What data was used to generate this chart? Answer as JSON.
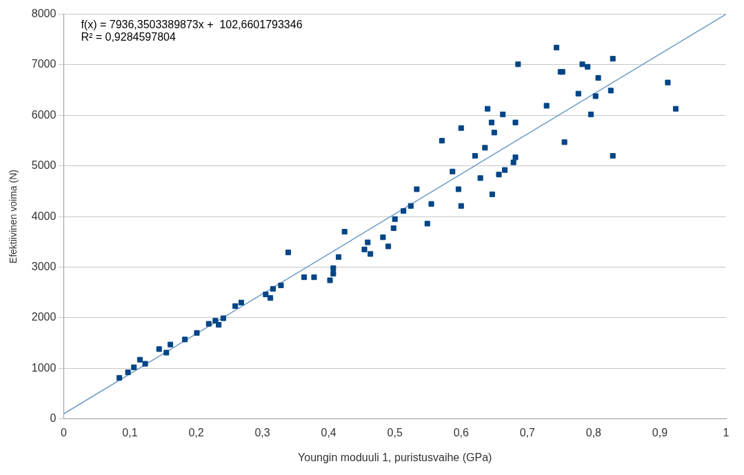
{
  "chart_data": {
    "type": "scatter",
    "xlabel": "Youngin moduuli 1, puristusvaihe (GPa)",
    "ylabel": "Efektiivinen voima (N)",
    "annotations": [
      "f(x) = 7936,3503389873x +  102,6601793346",
      "R² = 0,9284597804"
    ],
    "xlim": [
      0,
      1
    ],
    "ylim": [
      0,
      8000
    ],
    "xticks": [
      0,
      {
        "value": 0.1,
        "label": "0,1"
      },
      {
        "value": 0.2,
        "label": "0,2"
      },
      {
        "value": 0.3,
        "label": "0,3"
      },
      {
        "value": 0.4,
        "label": "0,4"
      },
      {
        "value": 0.5,
        "label": "0,5"
      },
      {
        "value": 0.6,
        "label": "0,6"
      },
      {
        "value": 0.7,
        "label": "0,7"
      },
      {
        "value": 0.8,
        "label": "0,8"
      },
      {
        "value": 0.9,
        "label": "0,9"
      },
      1
    ],
    "yticks": [
      0,
      1000,
      2000,
      3000,
      4000,
      5000,
      6000,
      7000,
      8000
    ],
    "grid": "y",
    "legend": false,
    "marker": "square",
    "series": [
      {
        "type": "scatter",
        "color": "#004586",
        "x": [
          0.084,
          0.097,
          0.106,
          0.115,
          0.123,
          0.144,
          0.155,
          0.161,
          0.183,
          0.201,
          0.219,
          0.229,
          0.234,
          0.241,
          0.259,
          0.268,
          0.305,
          0.312,
          0.316,
          0.328,
          0.339,
          0.363,
          0.378,
          0.402,
          0.407,
          0.407,
          0.415,
          0.424,
          0.454,
          0.459,
          0.463,
          0.482,
          0.49,
          0.498,
          0.5,
          0.513,
          0.524,
          0.533,
          0.549,
          0.555,
          0.571,
          0.587,
          0.596,
          0.6,
          0.6,
          0.621,
          0.629,
          0.636,
          0.64,
          0.646,
          0.647,
          0.65,
          0.657,
          0.663,
          0.666,
          0.679,
          0.682,
          0.682,
          0.686,
          0.729,
          0.744,
          0.75,
          0.753,
          0.756,
          0.777,
          0.783,
          0.791,
          0.796,
          0.803,
          0.807,
          0.826,
          0.829,
          0.829,
          0.912,
          0.924
        ],
        "values": [
          810,
          920,
          1020,
          1170,
          1090,
          1380,
          1310,
          1470,
          1570,
          1700,
          1880,
          1940,
          1860,
          1990,
          2230,
          2300,
          2460,
          2390,
          2570,
          2640,
          3290,
          2800,
          2800,
          2740,
          2980,
          2870,
          3200,
          3700,
          3350,
          3490,
          3260,
          3590,
          3410,
          3770,
          3950,
          4110,
          4210,
          4540,
          3860,
          4250,
          5500,
          4890,
          4540,
          5750,
          4210,
          5200,
          4760,
          5360,
          6130,
          5860,
          4440,
          5660,
          4830,
          6020,
          4920,
          5070,
          5860,
          5170,
          7010,
          6190,
          7340,
          6860,
          6860,
          5470,
          6430,
          7010,
          6960,
          6020,
          6380,
          6740,
          6490,
          7120,
          5200,
          6650,
          6130
        ]
      },
      {
        "type": "line",
        "color": "#6f9cc8",
        "marker": "none",
        "x": [
          0,
          1
        ],
        "values": [
          100,
          8000
        ]
      }
    ]
  }
}
